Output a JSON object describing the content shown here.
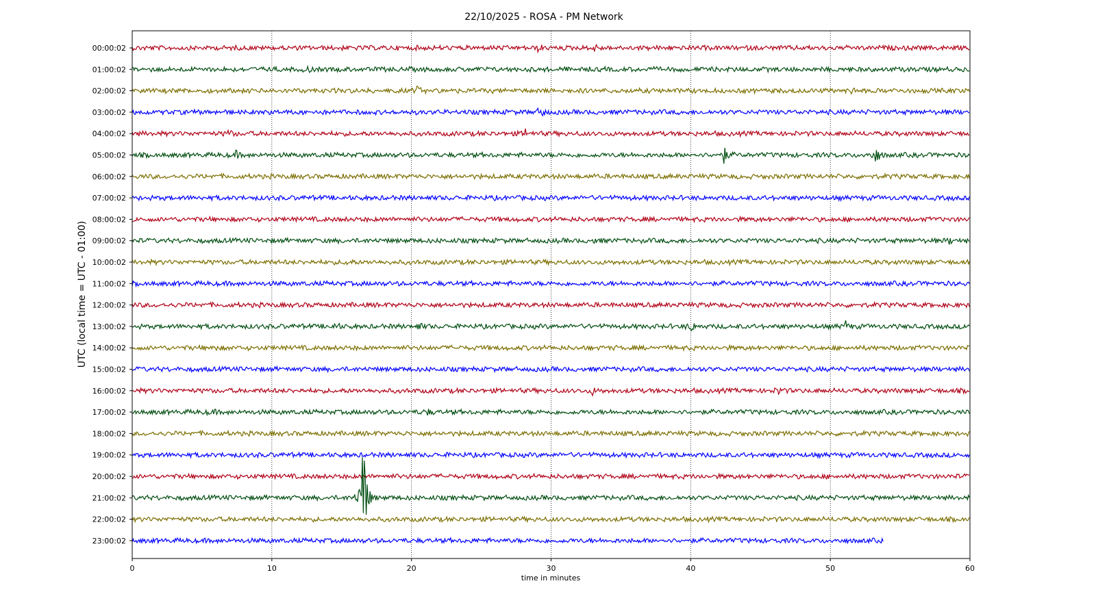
{
  "chart_data": {
    "type": "line",
    "title": "22/10/2025 - ROSA - PM Network",
    "xlabel": "time in minutes",
    "ylabel": "UTC (local time = UTC - 01:00)",
    "xlim": [
      0,
      60
    ],
    "x_ticks": [
      0,
      10,
      20,
      30,
      40,
      50,
      60
    ],
    "grid": "vertical dotted at x ticks",
    "colors": [
      "#b00016",
      "#004d10",
      "#7b6e00",
      "#0000ff"
    ],
    "traces": [
      {
        "label": "00:00:02",
        "end_minute": 60,
        "events": [
          {
            "t": 33.0,
            "amp": 0.18
          },
          {
            "t": 29.1,
            "amp": 0.12
          }
        ]
      },
      {
        "label": "01:00:02",
        "end_minute": 60,
        "events": [
          {
            "t": 12.5,
            "amp": 0.15
          }
        ]
      },
      {
        "label": "02:00:02",
        "end_minute": 60,
        "events": [
          {
            "t": 20.4,
            "amp": 0.15
          },
          {
            "t": 51.5,
            "amp": 0.1
          }
        ]
      },
      {
        "label": "03:00:02",
        "end_minute": 60,
        "events": [
          {
            "t": 29.2,
            "amp": 0.35
          }
        ]
      },
      {
        "label": "04:00:02",
        "end_minute": 60,
        "events": [
          {
            "t": 6.9,
            "amp": 0.15
          },
          {
            "t": 28.2,
            "amp": 0.2
          }
        ]
      },
      {
        "label": "05:00:02",
        "end_minute": 60,
        "events": [
          {
            "t": 7.4,
            "amp": 0.15
          },
          {
            "t": 42.4,
            "amp": 0.35
          },
          {
            "t": 53.2,
            "amp": 0.5
          }
        ]
      },
      {
        "label": "06:00:02",
        "end_minute": 60,
        "events": []
      },
      {
        "label": "07:00:02",
        "end_minute": 60,
        "events": []
      },
      {
        "label": "08:00:02",
        "end_minute": 60,
        "events": []
      },
      {
        "label": "09:00:02",
        "end_minute": 60,
        "events": [
          {
            "t": 33.2,
            "amp": 0.12
          },
          {
            "t": 58.5,
            "amp": 0.12
          }
        ]
      },
      {
        "label": "10:00:02",
        "end_minute": 60,
        "events": [
          {
            "t": 15.4,
            "amp": 0.12
          }
        ]
      },
      {
        "label": "11:00:02",
        "end_minute": 60,
        "events": []
      },
      {
        "label": "12:00:02",
        "end_minute": 60,
        "events": []
      },
      {
        "label": "13:00:02",
        "end_minute": 60,
        "events": [
          {
            "t": 14.5,
            "amp": 0.15
          },
          {
            "t": 20.5,
            "amp": 0.15
          },
          {
            "t": 40.0,
            "amp": 0.25
          },
          {
            "t": 51.1,
            "amp": 0.2
          }
        ]
      },
      {
        "label": "14:00:02",
        "end_minute": 60,
        "events": [
          {
            "t": 5.8,
            "amp": 0.12
          }
        ]
      },
      {
        "label": "15:00:02",
        "end_minute": 60,
        "events": []
      },
      {
        "label": "16:00:02",
        "end_minute": 60,
        "events": [
          {
            "t": 33.0,
            "amp": 0.15
          },
          {
            "t": 46.3,
            "amp": 0.15
          }
        ]
      },
      {
        "label": "17:00:02",
        "end_minute": 60,
        "events": [
          {
            "t": 5.6,
            "amp": 0.12
          },
          {
            "t": 21.0,
            "amp": 0.2
          }
        ]
      },
      {
        "label": "18:00:02",
        "end_minute": 60,
        "events": []
      },
      {
        "label": "19:00:02",
        "end_minute": 60,
        "events": []
      },
      {
        "label": "20:00:02",
        "end_minute": 60,
        "events": []
      },
      {
        "label": "21:00:02",
        "end_minute": 60,
        "events": [
          {
            "t": 16.5,
            "amp": 3.6
          }
        ]
      },
      {
        "label": "22:00:02",
        "end_minute": 60,
        "events": []
      },
      {
        "label": "23:00:02",
        "end_minute": 53.8,
        "events": []
      }
    ]
  }
}
